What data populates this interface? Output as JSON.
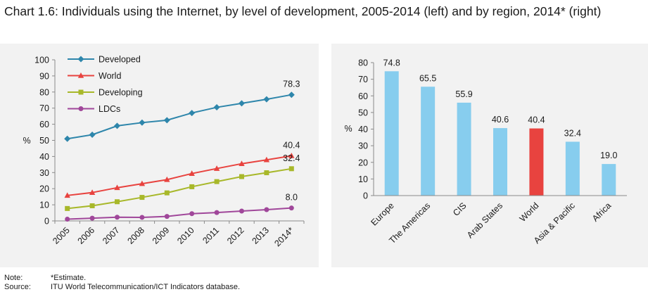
{
  "title": "Chart 1.6: Individuals using the Internet, by level of development, 2005-2014 (left) and by region, 2014* (right)",
  "note": {
    "label": "Note:",
    "text": "*Estimate."
  },
  "source": {
    "label": "Source:",
    "text": "ITU World Telecommunication/ICT Indicators database."
  },
  "colors": {
    "developed": "#2e86ab",
    "world": "#e8433f",
    "developing": "#a8b82a",
    "ldcs": "#a0479a",
    "bar": "#87cdee",
    "bar_highlight": "#e8433f"
  },
  "chart_data": [
    {
      "type": "line",
      "title": "",
      "xlabel": "",
      "ylabel": "%",
      "ylim": [
        0,
        100
      ],
      "yticks": [
        "0",
        "10",
        "20",
        "30",
        "40",
        "50",
        "60",
        "70",
        "80",
        "90",
        "100"
      ],
      "x": [
        "2005",
        "2006",
        "2007",
        "2008",
        "2009",
        "2010",
        "2011",
        "2012",
        "2013",
        "2014*"
      ],
      "legend_position": "top-left",
      "series": [
        {
          "name": "Developed",
          "key": "developed",
          "marker": "diamond",
          "values": [
            51,
            53.5,
            59,
            61,
            62.5,
            67,
            70.5,
            73,
            75.5,
            78.3
          ],
          "end_label": "78.3"
        },
        {
          "name": "World",
          "key": "world",
          "marker": "triangle",
          "values": [
            15.8,
            17.6,
            20.6,
            23.1,
            25.6,
            29.4,
            32.5,
            35.5,
            37.9,
            40.4
          ],
          "end_label": "40.4"
        },
        {
          "name": "Developing",
          "key": "developing",
          "marker": "square",
          "values": [
            7.7,
            9.4,
            11.9,
            14.6,
            17.4,
            21.2,
            24.4,
            27.5,
            29.9,
            32.4
          ],
          "end_label": "32.4"
        },
        {
          "name": "LDCs",
          "key": "ldcs",
          "marker": "circle",
          "values": [
            1.1,
            1.7,
            2.3,
            2.2,
            2.8,
            4.5,
            5.2,
            6.1,
            7.0,
            8.0
          ],
          "end_label": "8.0"
        }
      ]
    },
    {
      "type": "bar",
      "title": "",
      "xlabel": "",
      "ylabel": "%",
      "ylim": [
        0,
        80
      ],
      "yticks": [
        "0",
        "10",
        "20",
        "30",
        "40",
        "50",
        "60",
        "70",
        "80"
      ],
      "categories": [
        "Europe",
        "The Americas",
        "CIS",
        "Arab States",
        "World",
        "Asia & Pacific",
        "Africa"
      ],
      "values": [
        74.8,
        65.5,
        55.9,
        40.6,
        40.4,
        32.4,
        19.0
      ],
      "value_labels": [
        "74.8",
        "65.5",
        "55.9",
        "40.6",
        "40.4",
        "32.4",
        "19.0"
      ],
      "highlight": "World"
    }
  ]
}
